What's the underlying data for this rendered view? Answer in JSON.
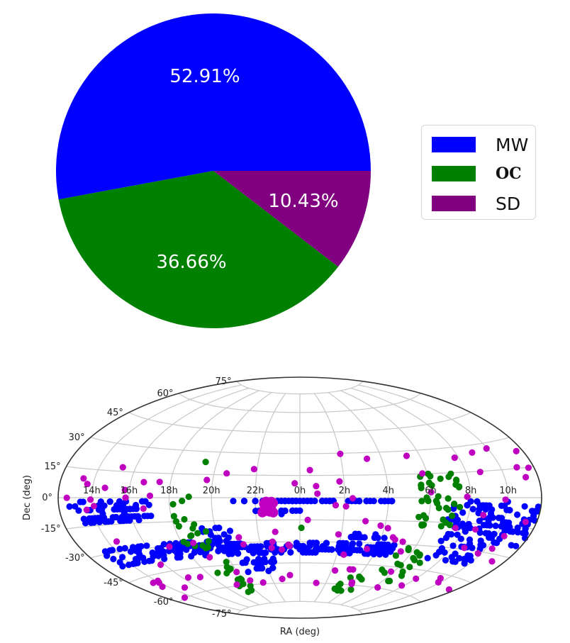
{
  "chart_data": [
    {
      "type": "pie",
      "title": "",
      "categories": [
        "MW",
        "OC",
        "SD"
      ],
      "values": [
        52.91,
        36.66,
        10.43
      ],
      "labels": [
        "52.91%",
        "36.66%",
        "10.43%"
      ],
      "colors": [
        "#0000ff",
        "#008000",
        "#800080"
      ],
      "start_angle_deg": 0,
      "direction": "counterclockwise",
      "legend": {
        "position": "right",
        "entries": [
          "MW",
          "OC",
          "SD"
        ]
      }
    },
    {
      "type": "scatter",
      "projection": "hammer/aitoff (all-sky)",
      "title": "",
      "xlabel": "RA (deg)",
      "ylabel": "Dec (deg)",
      "grid": true,
      "ra_tick_labels": [
        "14h",
        "16h",
        "18h",
        "20h",
        "22h",
        "0h",
        "2h",
        "4h",
        "6h",
        "8h",
        "10h"
      ],
      "dec_tick_labels": [
        "75°",
        "60°",
        "45°",
        "30°",
        "15°",
        "0°",
        "-15°",
        "-30°",
        "-45°",
        "-60°",
        "-75°"
      ],
      "series": [
        {
          "name": "MW",
          "color": "#0000ff",
          "description": "dense survey stripes mostly at Dec 0° to -60°, rows near Dec -3°, -10°, -22°, -30°, -35°",
          "clusters": [
            {
              "ra_h": [
                12.5,
                17.2
              ],
              "dec": [
                -2,
                -8
              ],
              "n": 40
            },
            {
              "ra_h": [
                13.3,
                17.0
              ],
              "dec": [
                -10,
                -14
              ],
              "n": 45
            },
            {
              "ra_h": [
                13.0,
                20.5
              ],
              "dec": [
                -28,
                -38
              ],
              "n": 90
            },
            {
              "ra_h": [
                19.3,
                21.0
              ],
              "dec": [
                -18,
                -32
              ],
              "n": 25
            },
            {
              "ra_h": [
                21.0,
                4.5
              ],
              "dec": [
                -2,
                -3
              ],
              "n": 60
            },
            {
              "ra_h": [
                21.8,
                0.2
              ],
              "dec": [
                -9,
                -10
              ],
              "n": 14
            },
            {
              "ra_h": [
                20.0,
                5.0
              ],
              "dec": [
                -30,
                -38
              ],
              "n": 160
            },
            {
              "ra_h": [
                2.5,
                4.3
              ],
              "dec": [
                -25,
                -27
              ],
              "n": 14
            },
            {
              "ra_h": [
                20.5,
                22.5
              ],
              "dec": [
                -42,
                -50
              ],
              "n": 30
            },
            {
              "ra_h": [
                7.0,
                12.0
              ],
              "dec": [
                -2,
                -25
              ],
              "n": 110
            },
            {
              "ra_h": [
                7.0,
                10.0
              ],
              "dec": [
                -25,
                -38
              ],
              "n": 30
            }
          ]
        },
        {
          "name": "OC",
          "color": "#008000",
          "description": "open clusters along Galactic plane: near 6h-8h and 18h-20h, plus southern points",
          "clusters": [
            {
              "ra_h": [
                5.5,
                7.5
              ],
              "dec": [
                15,
                -18
              ],
              "n": 40
            },
            {
              "ra_h": [
                18.0,
                19.5
              ],
              "dec": [
                2,
                -35
              ],
              "n": 20
            },
            {
              "ra_h": [
                18.5,
                20.0
              ],
              "dec": [
                -40,
                -65
              ],
              "n": 14
            },
            {
              "ra_h": [
                5.0,
                7.0
              ],
              "dec": [
                -30,
                -55
              ],
              "n": 18
            },
            {
              "ra_h": [
                3.0,
                4.5
              ],
              "dec": [
                -50,
                -70
              ],
              "n": 10
            },
            {
              "ra_h": [
                19.3,
                19.6
              ],
              "dec": [
                23,
                25
              ],
              "n": 1
            },
            {
              "ra_h": [
                0.0,
                0.1
              ],
              "dec": [
                -20,
                -21
              ],
              "n": 1
            }
          ]
        },
        {
          "name": "SD",
          "color": "#c000c0",
          "description": "scattered satellite dwarfs across sky, a large clump near 22.5h, -5°",
          "clusters": [
            {
              "ra_h": [
                22.3,
                22.8
              ],
              "dec": [
                -2,
                -10
              ],
              "n": 30
            },
            {
              "ra_h": [
                12.0,
                24.0
              ],
              "dec": [
                20,
                -60
              ],
              "n": 45
            },
            {
              "ra_h": [
                0.0,
                12.0
              ],
              "dec": [
                30,
                -60
              ],
              "n": 55
            }
          ]
        }
      ]
    }
  ],
  "legend": {
    "items": [
      {
        "label": "MW",
        "color": "#0000ff"
      },
      {
        "label": "OC",
        "color": "#008000"
      },
      {
        "label": "SD",
        "color": "#800080"
      }
    ]
  }
}
